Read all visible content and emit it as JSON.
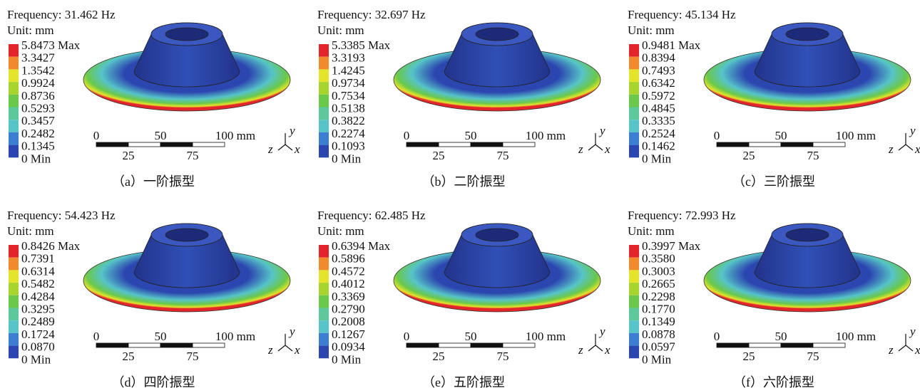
{
  "legend_colors": [
    "#e3242b",
    "#f08a2c",
    "#e4e42a",
    "#a8d42e",
    "#6ac84a",
    "#5cc89c",
    "#56c4c8",
    "#3c7ed2",
    "#2c46b0"
  ],
  "panels": [
    {
      "frequency": "Frequency: 31.462 Hz",
      "unit": "Unit: mm",
      "legend": [
        "5.8473 Max",
        "3.3427",
        "1.3542",
        "0.9924",
        "0.8736",
        "0.5293",
        "0.3457",
        "0.2482",
        "0.1345",
        "0 Min"
      ],
      "scale": [
        "0",
        "50",
        "100 mm",
        "25",
        "75"
      ],
      "axes": [
        "y",
        "z",
        "x"
      ],
      "caption": "（a）一阶振型"
    },
    {
      "frequency": "Frequency: 32.697 Hz",
      "unit": "Unit: mm",
      "legend": [
        "5.3385 Max",
        "3.3193",
        "1.4245",
        "0.9734",
        "0.7534",
        "0.5138",
        "0.3822",
        "0.2274",
        "0.1093",
        "0 Min"
      ],
      "scale": [
        "0",
        "50",
        "100 mm",
        "25",
        "75"
      ],
      "axes": [
        "y",
        "z",
        "x"
      ],
      "caption": "（b）二阶振型"
    },
    {
      "frequency": "Frequency: 45.134 Hz",
      "unit": "Unit: mm",
      "legend": [
        "0.9481 Max",
        "0.8394",
        "0.7493",
        "0.6342",
        "0.5972",
        "0.4845",
        "0.3335",
        "0.2524",
        "0.1462",
        "0 Min"
      ],
      "scale": [
        "0",
        "50",
        "100 mm",
        "25",
        "75"
      ],
      "axes": [
        "y",
        "z",
        "x"
      ],
      "caption": "（c）三阶振型"
    },
    {
      "frequency": "Frequency: 54.423 Hz",
      "unit": "Unit: mm",
      "legend": [
        "0.8426 Max",
        "0.7391",
        "0.6314",
        "0.5482",
        "0.4284",
        "0.3295",
        "0.2489",
        "0.1724",
        "0.0870",
        "0 Min"
      ],
      "scale": [
        "0",
        "50",
        "100 mm",
        "25",
        "75"
      ],
      "axes": [
        "y",
        "z",
        "x"
      ],
      "caption": "（d）四阶振型"
    },
    {
      "frequency": "Frequency: 62.485 Hz",
      "unit": "Unit: mm",
      "legend": [
        "0.6394 Max",
        "0.5896",
        "0.4572",
        "0.4012",
        "0.3369",
        "0.2790",
        "0.2008",
        "0.1267",
        "0.0934",
        "0 Min"
      ],
      "scale": [
        "0",
        "50",
        "100 mm",
        "25",
        "75"
      ],
      "axes": [
        "y",
        "z",
        "x"
      ],
      "caption": "（e）五阶振型"
    },
    {
      "frequency": "Frequency: 72.993 Hz",
      "unit": "Unit: mm",
      "legend": [
        "0.3997 Max",
        "0.3580",
        "0.3003",
        "0.2665",
        "0.2298",
        "0.1770",
        "0.1349",
        "0.0878",
        "0.0597",
        "0 Min"
      ],
      "scale": [
        "0",
        "50",
        "100 mm",
        "25",
        "75"
      ],
      "axes": [
        "y",
        "z",
        "x"
      ],
      "caption": "（f）六阶振型"
    }
  ]
}
